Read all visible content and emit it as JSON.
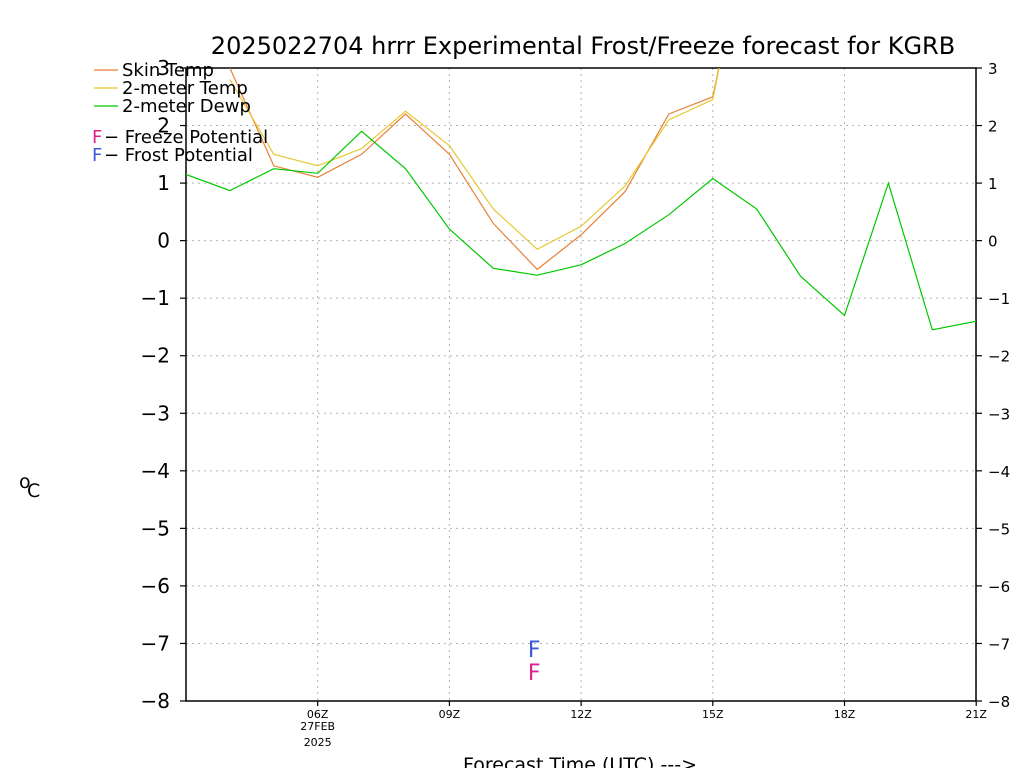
{
  "chart_data": {
    "type": "line",
    "title": "2025022704 hrrr Experimental Frost/Freeze forecast for KGRB",
    "xlabel": "Forecast Time (UTC) --->",
    "ylabel": "°C",
    "ylabel_sup": "o",
    "ylabel_main": "C",
    "ylim": [
      -8,
      3
    ],
    "yticks": [
      3,
      2,
      1,
      0,
      -1,
      -2,
      -3,
      -4,
      -5,
      -6,
      -7,
      -8
    ],
    "yticks_labels": [
      "3",
      "2",
      "1",
      "0",
      "−1",
      "−2",
      "−3",
      "−4",
      "−5",
      "−6",
      "−7",
      "−8"
    ],
    "xlim_hours": [
      3,
      21
    ],
    "xticks": [
      {
        "hour": 6,
        "label": "06Z",
        "sub1": "27FEB",
        "sub2": "2025"
      },
      {
        "hour": 9,
        "label": "09Z",
        "sub1": "",
        "sub2": ""
      },
      {
        "hour": 12,
        "label": "12Z",
        "sub1": "",
        "sub2": ""
      },
      {
        "hour": 15,
        "label": "15Z",
        "sub1": "",
        "sub2": ""
      },
      {
        "hour": 18,
        "label": "18Z",
        "sub1": "",
        "sub2": ""
      },
      {
        "hour": 21,
        "label": "21Z",
        "sub1": "",
        "sub2": ""
      }
    ],
    "grid": true,
    "legend_placement": "top-left",
    "series": [
      {
        "name": "Skin Temp",
        "color": "#e8813a",
        "x": [
          4,
          5,
          6,
          7,
          8,
          9,
          10,
          11,
          12,
          13,
          14,
          15,
          15.3
        ],
        "y": [
          3,
          1.3,
          1.1,
          1.5,
          2.2,
          1.5,
          0.3,
          -0.5,
          0.1,
          0.85,
          2.2,
          2.5,
          3.6
        ]
      },
      {
        "name": "2-meter Temp",
        "color": "#e8c832",
        "x": [
          4,
          5,
          6,
          7,
          8,
          9,
          10,
          11,
          12,
          13,
          14,
          15,
          15.3
        ],
        "y": [
          2.8,
          1.5,
          1.3,
          1.6,
          2.25,
          1.65,
          0.55,
          -0.15,
          0.25,
          0.95,
          2.1,
          2.45,
          3.6
        ]
      },
      {
        "name": "2-meter Dewp",
        "color": "#00c800",
        "x": [
          3,
          4,
          5,
          6,
          7,
          8,
          9,
          10,
          11,
          12,
          13,
          14,
          15,
          16,
          17,
          18,
          19,
          20,
          21,
          22
        ],
        "y": [
          1.15,
          0.87,
          1.25,
          1.17,
          1.9,
          1.25,
          0.2,
          -0.48,
          -0.6,
          -0.42,
          -0.05,
          0.45,
          1.08,
          0.55,
          -0.62,
          -1.3,
          1.0,
          -1.55,
          -1.4,
          -1.4
        ]
      }
    ],
    "potential_legend": [
      {
        "symbol": "F",
        "label": " − Freeze Potential",
        "color": "#e0208e"
      },
      {
        "symbol": "F",
        "label": " − Frost Potential",
        "color": "#3a5ad8"
      }
    ],
    "potential_markers": [
      {
        "hour": 11,
        "kind": "frost",
        "symbol": "F",
        "color": "#3a5ad8",
        "level": -7.1
      },
      {
        "hour": 11,
        "kind": "freeze",
        "symbol": "F",
        "color": "#e0208e",
        "level": -7.5
      }
    ]
  }
}
